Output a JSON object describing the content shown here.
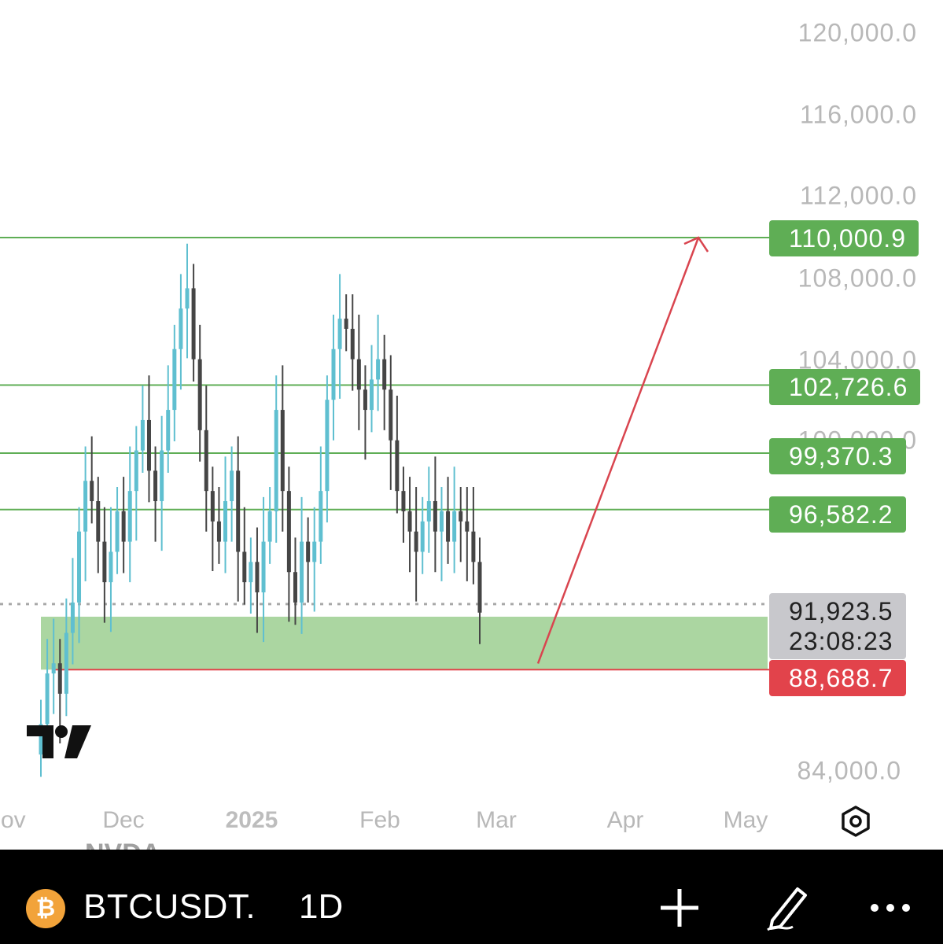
{
  "chart_data": {
    "type": "candlestick",
    "price_axis": {
      "ticks": [
        "120,000.0",
        "116,000.0",
        "112,000.0",
        "108,000.0",
        "104,000.0",
        "100,000.0",
        "84,000.0"
      ]
    },
    "time_axis": {
      "ticks": [
        "Nov",
        "Dec",
        "2025",
        "Feb",
        "Mar",
        "Apr",
        "May"
      ]
    },
    "ylim": [
      81000,
      121500
    ],
    "levels": [
      {
        "value": 110000.9,
        "label": "110,000.9",
        "color": "#5fae55"
      },
      {
        "value": 102726.6,
        "label": "102,726.6",
        "color": "#5fae55"
      },
      {
        "value": 99370.3,
        "label": "99,370.3",
        "color": "#5fae55"
      },
      {
        "value": 96582.2,
        "label": "96,582.2",
        "color": "#5fae55"
      },
      {
        "value": 88688.7,
        "label": "88,688.7",
        "color": "#e2434b"
      }
    ],
    "current_price": {
      "value": 91923.5,
      "label": "91,923.5",
      "countdown": "23:08:23"
    },
    "support_zone": {
      "low": 88688.7,
      "high": 91300,
      "color": "#a6d49c"
    },
    "projection_arrow": {
      "from": [
        88990,
        "Mar"
      ],
      "to": [
        110000.9,
        "Apr"
      ],
      "color": "#d9454f"
    },
    "candles_close": [
      86000,
      88500,
      89000,
      87500,
      90500,
      92000,
      95500,
      98000,
      97000,
      95000,
      93000,
      94500,
      96500,
      95000,
      97500,
      99500,
      101000,
      98500,
      97000,
      99500,
      101500,
      104500,
      106500,
      107500,
      104000,
      100500,
      97500,
      96000,
      95000,
      97000,
      98500,
      94500,
      93000,
      94000,
      92500,
      95000,
      96500,
      101500,
      97500,
      93500,
      92000,
      95000,
      94000,
      95000,
      97500,
      102000,
      104500,
      106000,
      105500,
      104000,
      102500,
      101500,
      103000,
      104000,
      102500,
      100000,
      97500,
      96500,
      95500,
      94500,
      96000,
      97000,
      95500,
      96500,
      95000,
      96500,
      96000,
      95500,
      94000,
      91500
    ]
  },
  "colors": {
    "up_candle": "#5fbfd0",
    "down_candle": "#454545"
  },
  "toolbar": {
    "symbol": "BTCUSDT.",
    "interval": "1D",
    "coin_glyph": "₿",
    "ghost_symbol": "NVDA",
    "icons": [
      "plus-icon",
      "pencil-icon",
      "more-icon",
      "settings-icon"
    ]
  }
}
